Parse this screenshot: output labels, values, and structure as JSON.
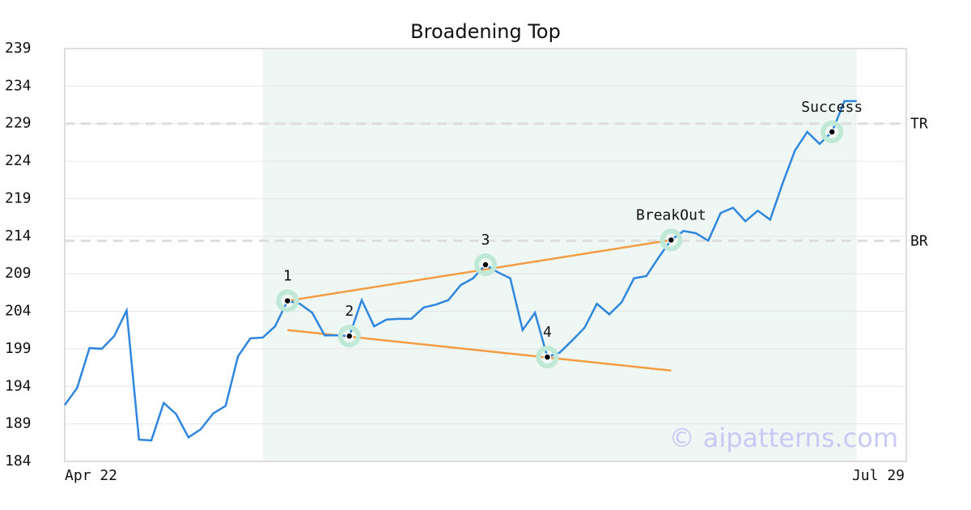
{
  "chart_data": {
    "type": "line",
    "title": "Broadening Top",
    "xlim": [
      0,
      68
    ],
    "xticks": [
      {
        "value": 0,
        "label": "Apr 22"
      },
      {
        "value": 68,
        "label": "Jul 29"
      }
    ],
    "ylim": [
      184,
      239
    ],
    "yticks": [
      184,
      189,
      194,
      199,
      204,
      209,
      214,
      219,
      224,
      229,
      234,
      239
    ],
    "grid": true,
    "highlight_range": [
      16,
      64
    ],
    "highlight_color": "#eef7f3",
    "series": [
      {
        "color": "#2e86de",
        "values": [
          191.5,
          193.8,
          199.1,
          199.0,
          200.7,
          204.1,
          186.9,
          186.8,
          191.8,
          190.3,
          187.2,
          188.3,
          190.4,
          191.4,
          198.0,
          200.4,
          200.5,
          202.0,
          205.4,
          205.0,
          203.8,
          200.8,
          200.8,
          200.7,
          205.5,
          202.0,
          202.9,
          203.0,
          203.0,
          204.5,
          204.9,
          205.5,
          207.5,
          208.4,
          210.2,
          209.2,
          208.4,
          201.5,
          203.8,
          197.9,
          198.5,
          200.1,
          201.8,
          205.0,
          203.6,
          205.2,
          208.4,
          208.7,
          211.2,
          213.5,
          214.7,
          214.4,
          213.4,
          217.1,
          217.8,
          216.0,
          217.4,
          216.2,
          221.0,
          225.4,
          227.9,
          226.3,
          227.9,
          232.0,
          232.0
        ]
      }
    ],
    "trendlines": [
      {
        "color": "#f39c44",
        "x": [
          18,
          49
        ],
        "y": [
          205.4,
          213.5
        ]
      },
      {
        "color": "#f39c44",
        "x": [
          18,
          49
        ],
        "y": [
          201.5,
          196.1
        ]
      }
    ],
    "reference_lines": [
      {
        "label": "TR",
        "value": 229.0
      },
      {
        "label": "BR",
        "value": 213.4
      }
    ],
    "points": [
      {
        "label": "1",
        "x": 18,
        "y": 205.4
      },
      {
        "label": "2",
        "x": 23,
        "y": 200.7
      },
      {
        "label": "3",
        "x": 34,
        "y": 210.2
      },
      {
        "label": "4",
        "x": 39,
        "y": 197.9
      },
      {
        "label": "BreakOut",
        "x": 49,
        "y": 213.5
      },
      {
        "label": "Success",
        "x": 62,
        "y": 227.9
      }
    ],
    "watermark": "© aipatterns.com"
  }
}
